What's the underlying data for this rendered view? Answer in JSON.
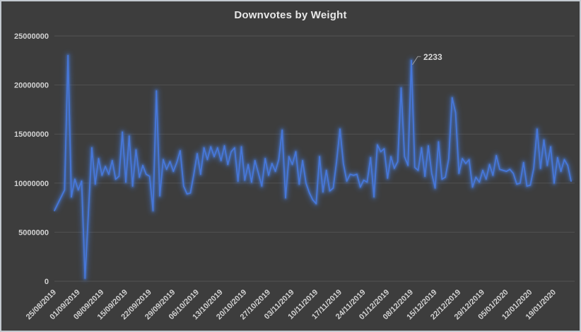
{
  "window": {
    "kind": "excel-style chart on dark theme"
  },
  "colors": {
    "background": "#3d3d3d",
    "frame_border": "#c3c9cf",
    "gridline": "#525252",
    "title_text": "#e8e8e8",
    "axis_text": "#d2d2d2",
    "series_color": "#4777d9",
    "glow_color": "#4472c4",
    "annotation_text": "#d8d8d8",
    "annotation_line": "#9a9a9a"
  },
  "chart_data": {
    "type": "line",
    "title": "Downvotes by Weight",
    "xlabel": "",
    "ylabel": "",
    "legend": "none",
    "grid": "horizontal",
    "ylim": [
      0,
      25000000
    ],
    "y_ticks": [
      25000000,
      20000000,
      15000000,
      10000000,
      5000000,
      0
    ],
    "x_tick_interval_points": 7,
    "x_tick_labels": [
      "25/08/2019",
      "01/09/2019",
      "08/09/2019",
      "15/09/2019",
      "22/09/2019",
      "29/09/2019",
      "06/10/2019",
      "13/10/2019",
      "20/10/2019",
      "27/10/2019",
      "03/11/2019",
      "10/11/2019",
      "17/11/2019",
      "24/11/2019",
      "01/12/2019",
      "08/12/2019",
      "15/12/2019",
      "22/12/2019",
      "29/12/2019",
      "05/01/2020",
      "12/01/2020",
      "19/01/2020"
    ],
    "annotation": {
      "text": "2233",
      "point_index": 105
    },
    "line_glow": true,
    "series": [
      {
        "values": [
          7200000,
          7900000,
          8600000,
          9300000,
          23000000,
          8600000,
          10400000,
          9300000,
          10200000,
          300000,
          7000000,
          13600000,
          9900000,
          12500000,
          10800000,
          11700000,
          10900000,
          12300000,
          10400000,
          10700000,
          15200000,
          10100000,
          14800000,
          9700000,
          13400000,
          10600000,
          11800000,
          10900000,
          10700000,
          7200000,
          19400000,
          8700000,
          12400000,
          11400000,
          12200000,
          11200000,
          12100000,
          13300000,
          9700000,
          8900000,
          9000000,
          10900000,
          13000000,
          10900000,
          13600000,
          12400000,
          13700000,
          12700000,
          13600000,
          12300000,
          13800000,
          11900000,
          13200000,
          13600000,
          10200000,
          13700000,
          10300000,
          11900000,
          10100000,
          12300000,
          11000000,
          9700000,
          12500000,
          10800000,
          12000000,
          11200000,
          12400000,
          15400000,
          8500000,
          12700000,
          11900000,
          13200000,
          9900000,
          12300000,
          10000000,
          9000000,
          8300000,
          7900000,
          12700000,
          9100000,
          11300000,
          9200000,
          9500000,
          12200000,
          15500000,
          12000000,
          10200000,
          10900000,
          10800000,
          10900000,
          9600000,
          10300000,
          10100000,
          12600000,
          8600000,
          13900000,
          13200000,
          13500000,
          10500000,
          12700000,
          11500000,
          12200000,
          19700000,
          12700000,
          11800000,
          22500000,
          11600000,
          11300000,
          13600000,
          10700000,
          13800000,
          11000000,
          9500000,
          14200000,
          10400000,
          10600000,
          12500000,
          18700000,
          17200000,
          11000000,
          12500000,
          12000000,
          12400000,
          9600000,
          10600000,
          10100000,
          11300000,
          10400000,
          11900000,
          10800000,
          12800000,
          11400000,
          11300000,
          11200000,
          11400000,
          11000000,
          9900000,
          10000000,
          12100000,
          9700000,
          9800000,
          11500000,
          15500000,
          11500000,
          14400000,
          11800000,
          13700000,
          10000000,
          12600000,
          11200000,
          12400000,
          11800000,
          10200000
        ]
      }
    ]
  }
}
